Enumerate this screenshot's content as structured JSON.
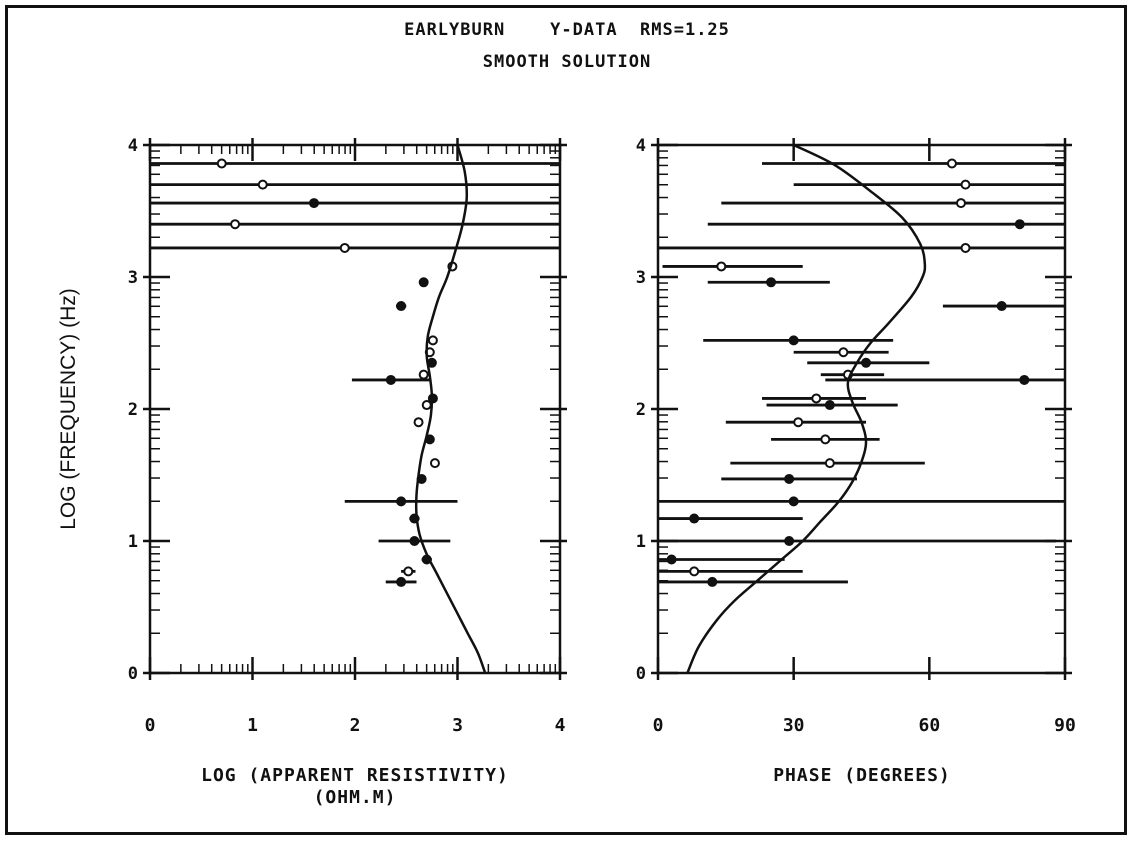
{
  "title": "EARLYBURN    Y-DATA  RMS=1.25",
  "subtitle": "SMOOTH SOLUTION",
  "chart_data": [
    {
      "type": "scatter",
      "xlabel": "LOG (APPARENT RESISTIVITY)",
      "xlabel2": "(OHM.M)",
      "ylabel": "LOG (FREQUENCY) (Hz)",
      "xlim": [
        0,
        4
      ],
      "ylim": [
        0,
        4
      ],
      "xticks": [
        "0",
        "1",
        "2",
        "3",
        "4"
      ],
      "yticks": [
        "0",
        "1",
        "2",
        "3",
        "4"
      ],
      "grid": false,
      "points": [
        {
          "x": 0.7,
          "y": 3.86,
          "lo": -0.6,
          "hi": 4.6,
          "m": "o"
        },
        {
          "x": 1.1,
          "y": 3.7,
          "lo": -0.6,
          "hi": 4.6,
          "m": "o"
        },
        {
          "x": 1.6,
          "y": 3.56,
          "lo": -0.6,
          "hi": 4.6,
          "m": "f"
        },
        {
          "x": 0.83,
          "y": 3.4,
          "lo": -0.6,
          "hi": 4.6,
          "m": "o"
        },
        {
          "x": 1.9,
          "y": 3.22,
          "lo": -0.6,
          "hi": 4.6,
          "m": "o"
        },
        {
          "x": 2.95,
          "y": 3.08,
          "lo": 2.95,
          "hi": 2.95,
          "m": "o"
        },
        {
          "x": 2.67,
          "y": 2.96,
          "lo": 2.67,
          "hi": 2.67,
          "m": "f"
        },
        {
          "x": 2.45,
          "y": 2.78,
          "lo": 2.4,
          "hi": 2.5,
          "m": "f"
        },
        {
          "x": 2.76,
          "y": 2.52,
          "lo": 2.76,
          "hi": 2.76,
          "m": "o"
        },
        {
          "x": 2.73,
          "y": 2.43,
          "lo": 2.73,
          "hi": 2.73,
          "m": "o"
        },
        {
          "x": 2.75,
          "y": 2.35,
          "lo": 2.75,
          "hi": 2.75,
          "m": "f"
        },
        {
          "x": 2.67,
          "y": 2.26,
          "lo": 2.67,
          "hi": 2.67,
          "m": "o"
        },
        {
          "x": 2.35,
          "y": 2.22,
          "lo": 1.97,
          "hi": 2.73,
          "m": "f"
        },
        {
          "x": 2.76,
          "y": 2.08,
          "lo": 2.76,
          "hi": 2.76,
          "m": "f"
        },
        {
          "x": 2.7,
          "y": 2.03,
          "lo": 2.7,
          "hi": 2.7,
          "m": "o"
        },
        {
          "x": 2.62,
          "y": 1.9,
          "lo": 2.62,
          "hi": 2.62,
          "m": "o"
        },
        {
          "x": 2.73,
          "y": 1.77,
          "lo": 2.73,
          "hi": 2.73,
          "m": "f"
        },
        {
          "x": 2.78,
          "y": 1.59,
          "lo": 2.78,
          "hi": 2.78,
          "m": "o"
        },
        {
          "x": 2.65,
          "y": 1.47,
          "lo": 2.65,
          "hi": 2.65,
          "m": "f"
        },
        {
          "x": 2.45,
          "y": 1.3,
          "lo": 1.9,
          "hi": 3.0,
          "m": "f"
        },
        {
          "x": 2.58,
          "y": 1.17,
          "lo": 2.53,
          "hi": 2.63,
          "m": "f"
        },
        {
          "x": 2.58,
          "y": 1.0,
          "lo": 2.23,
          "hi": 2.93,
          "m": "f"
        },
        {
          "x": 2.7,
          "y": 0.86,
          "lo": 2.65,
          "hi": 2.75,
          "m": "f"
        },
        {
          "x": 2.52,
          "y": 0.77,
          "lo": 2.45,
          "hi": 2.59,
          "m": "o"
        },
        {
          "x": 2.45,
          "y": 0.69,
          "lo": 2.3,
          "hi": 2.6,
          "m": "f"
        }
      ],
      "curve": {
        "x": [
          3.27,
          3.2,
          3.1,
          3.0,
          2.9,
          2.8,
          2.7,
          2.63,
          2.6,
          2.6,
          2.62,
          2.65,
          2.7,
          2.74,
          2.75,
          2.73,
          2.7,
          2.71,
          2.76,
          2.82,
          2.9,
          2.98,
          3.05,
          3.09,
          3.07,
          3.0
        ],
        "y": [
          0.0,
          0.15,
          0.3,
          0.45,
          0.6,
          0.75,
          0.9,
          1.05,
          1.2,
          1.35,
          1.5,
          1.65,
          1.8,
          1.95,
          2.1,
          2.25,
          2.4,
          2.55,
          2.7,
          2.85,
          3.0,
          3.2,
          3.4,
          3.6,
          3.8,
          4.0
        ]
      }
    },
    {
      "type": "scatter",
      "xlabel": "PHASE (DEGREES)",
      "xlim": [
        0,
        90
      ],
      "ylim": [
        0,
        4
      ],
      "xticks": [
        "0",
        "30",
        "60",
        "90"
      ],
      "yticks": [
        "0",
        "1",
        "2",
        "3",
        "4"
      ],
      "grid": false,
      "points": [
        {
          "x": 65,
          "y": 3.86,
          "lo": 23,
          "hi": 92,
          "m": "o"
        },
        {
          "x": 68,
          "y": 3.7,
          "lo": 30,
          "hi": 92,
          "m": "o"
        },
        {
          "x": 67,
          "y": 3.56,
          "lo": 14,
          "hi": 92,
          "m": "o"
        },
        {
          "x": 80,
          "y": 3.4,
          "lo": 11,
          "hi": 92,
          "m": "f"
        },
        {
          "x": 68,
          "y": 3.22,
          "lo": -2,
          "hi": 92,
          "m": "o"
        },
        {
          "x": 14,
          "y": 3.08,
          "lo": 1,
          "hi": 32,
          "m": "o"
        },
        {
          "x": 25,
          "y": 2.96,
          "lo": 11,
          "hi": 38,
          "m": "f"
        },
        {
          "x": 76,
          "y": 2.78,
          "lo": 63,
          "hi": 90,
          "m": "f"
        },
        {
          "x": 30,
          "y": 2.52,
          "lo": 10,
          "hi": 52,
          "m": "f"
        },
        {
          "x": 41,
          "y": 2.43,
          "lo": 30,
          "hi": 51,
          "m": "o"
        },
        {
          "x": 46,
          "y": 2.35,
          "lo": 33,
          "hi": 60,
          "m": "f"
        },
        {
          "x": 42,
          "y": 2.26,
          "lo": 36,
          "hi": 50,
          "m": "o"
        },
        {
          "x": 81,
          "y": 2.22,
          "lo": 37,
          "hi": 90,
          "m": "f"
        },
        {
          "x": 35,
          "y": 2.08,
          "lo": 23,
          "hi": 46,
          "m": "o"
        },
        {
          "x": 38,
          "y": 2.03,
          "lo": 24,
          "hi": 53,
          "m": "f"
        },
        {
          "x": 31,
          "y": 1.9,
          "lo": 15,
          "hi": 46,
          "m": "o"
        },
        {
          "x": 37,
          "y": 1.77,
          "lo": 25,
          "hi": 49,
          "m": "o"
        },
        {
          "x": 38,
          "y": 1.59,
          "lo": 16,
          "hi": 59,
          "m": "o"
        },
        {
          "x": 29,
          "y": 1.47,
          "lo": 14,
          "hi": 44,
          "m": "f"
        },
        {
          "x": 30,
          "y": 1.3,
          "lo": -2,
          "hi": 92,
          "m": "f"
        },
        {
          "x": 8,
          "y": 1.17,
          "lo": -2,
          "hi": 32,
          "m": "f"
        },
        {
          "x": 29,
          "y": 1.0,
          "lo": -2,
          "hi": 88,
          "m": "f"
        },
        {
          "x": 3,
          "y": 0.86,
          "lo": -2,
          "hi": 28,
          "m": "f"
        },
        {
          "x": 8,
          "y": 0.77,
          "lo": -2,
          "hi": 32,
          "m": "o"
        },
        {
          "x": 12,
          "y": 0.69,
          "lo": -2,
          "hi": 42,
          "m": "f"
        }
      ],
      "curve": {
        "x": [
          6.5,
          9,
          13,
          17,
          22,
          27,
          32,
          36,
          40,
          43,
          45,
          46,
          45,
          43,
          42,
          44,
          47,
          51,
          56,
          58.5,
          59,
          58,
          54,
          47,
          39,
          30
        ],
        "y": [
          0.0,
          0.2,
          0.4,
          0.55,
          0.7,
          0.85,
          1.0,
          1.15,
          1.3,
          1.45,
          1.6,
          1.75,
          1.9,
          2.05,
          2.2,
          2.35,
          2.5,
          2.65,
          2.85,
          3.0,
          3.1,
          3.25,
          3.45,
          3.65,
          3.85,
          4.0
        ]
      }
    }
  ]
}
